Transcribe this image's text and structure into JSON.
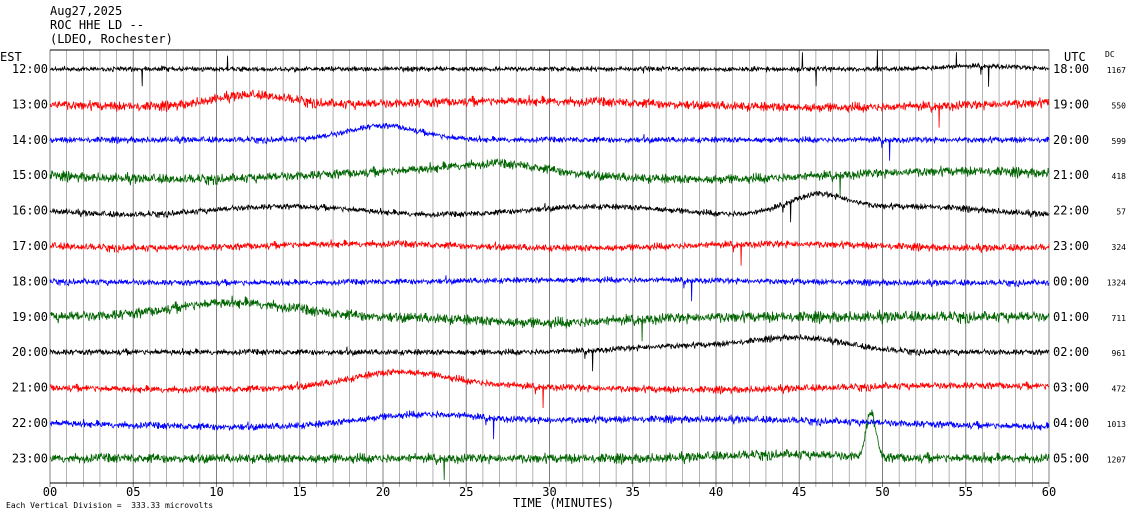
{
  "header": {
    "date": "Aug27,2025",
    "station": "ROC HHE LD --",
    "location": "(LDEO, Rochester)"
  },
  "labels": {
    "left_tz": "EST",
    "right_tz": "UTC",
    "dc": "DC",
    "xlabel": "TIME (MINUTES)",
    "scale_note": "Each Vertical Division =  333.33 microvolts"
  },
  "colors": {
    "black": "#000000",
    "red": "#ff0000",
    "blue": "#0000ff",
    "green": "#006400",
    "grid": "#808080"
  },
  "chart_data": {
    "type": "line",
    "title": "ROC HHE LD --",
    "subtitle": "(LDEO, Rochester)",
    "date": "Aug27,2025",
    "xlabel": "TIME (MINUTES)",
    "xlim": [
      0,
      60
    ],
    "x_ticks": [
      "00",
      "05",
      "10",
      "15",
      "20",
      "25",
      "30",
      "35",
      "40",
      "45",
      "50",
      "55",
      "60"
    ],
    "grid": "vertical lines every minute",
    "rows": [
      {
        "est": "12:00",
        "utc": "18:00",
        "dc": "1167",
        "color": "black"
      },
      {
        "est": "13:00",
        "utc": "19:00",
        "dc": "550",
        "color": "red"
      },
      {
        "est": "14:00",
        "utc": "20:00",
        "dc": "599",
        "color": "blue"
      },
      {
        "est": "15:00",
        "utc": "21:00",
        "dc": "418",
        "color": "green"
      },
      {
        "est": "16:00",
        "utc": "22:00",
        "dc": "57",
        "color": "black"
      },
      {
        "est": "17:00",
        "utc": "23:00",
        "dc": "324",
        "color": "red"
      },
      {
        "est": "18:00",
        "utc": "00:00",
        "dc": "1324",
        "color": "blue"
      },
      {
        "est": "19:00",
        "utc": "01:00",
        "dc": "711",
        "color": "green"
      },
      {
        "est": "20:00",
        "utc": "02:00",
        "dc": "961",
        "color": "black"
      },
      {
        "est": "21:00",
        "utc": "03:00",
        "dc": "472",
        "color": "red"
      },
      {
        "est": "22:00",
        "utc": "04:00",
        "dc": "1013",
        "color": "blue"
      },
      {
        "est": "23:00",
        "utc": "05:00",
        "dc": "1207",
        "color": "green"
      }
    ]
  }
}
